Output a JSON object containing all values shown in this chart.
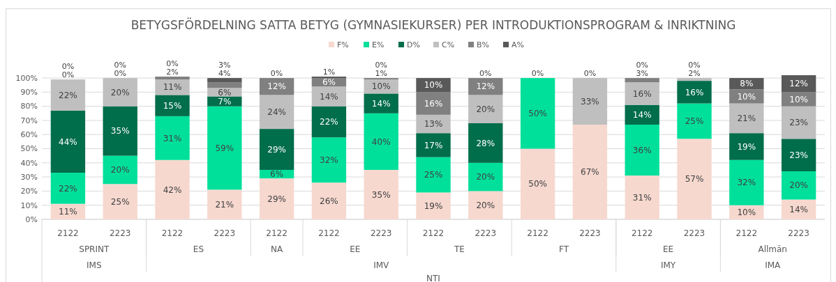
{
  "chart_data": {
    "type": "bar",
    "stacked": true,
    "title": "BETYGSFÖRDELNING SATTA BETYG (GYMNASIEKURSER) PER INTRODUKTIONSPROGRAM & INRIKTNING",
    "categories": [
      "2122",
      "2223",
      "2122",
      "2223",
      "2122",
      "2122",
      "2223",
      "2122",
      "2223",
      "2122",
      "2223",
      "2122",
      "2223",
      "2122",
      "2223"
    ],
    "annotations": [
      "SPRINT",
      "ES",
      "NA",
      "EE",
      "TE",
      "FT",
      "EE",
      "Allmän",
      "IMS",
      "IMV",
      "IMY",
      "IMA",
      "NTI"
    ],
    "series": [
      {
        "name": "F%",
        "color": "#f6d8cf",
        "values": [
          11,
          25,
          42,
          21,
          29,
          26,
          35,
          19,
          20,
          50,
          67,
          31,
          57,
          10,
          14
        ],
        "value_labels": [
          "11%",
          "25%",
          "42%",
          "21%",
          "29%",
          "26%",
          "35%",
          "19%",
          "20%",
          "50%",
          "67%",
          "31%",
          "57%",
          "10%",
          "14%"
        ]
      },
      {
        "name": "E%",
        "color": "#00e09b",
        "values": [
          22,
          20,
          31,
          59,
          6,
          32,
          40,
          25,
          20,
          50,
          0,
          36,
          25,
          32,
          20
        ],
        "value_labels": [
          "22%",
          "20%",
          "31%",
          "59%",
          "6%",
          "32%",
          "40%",
          "25%",
          "20%",
          "50%",
          null,
          "36%",
          "25%",
          "32%",
          "20%"
        ]
      },
      {
        "name": "D%",
        "color": "#006d4b",
        "values": [
          44,
          35,
          15,
          7,
          29,
          22,
          14,
          17,
          28,
          0,
          0,
          14,
          16,
          19,
          23
        ],
        "value_labels": [
          "44%",
          "35%",
          "15%",
          "7%",
          "29%",
          "22%",
          "14%",
          "17%",
          "28%",
          "0%",
          null,
          "14%",
          "16%",
          "19%",
          "23%"
        ]
      },
      {
        "name": "C%",
        "color": "#bfbfbf",
        "values": [
          22,
          20,
          11,
          6,
          24,
          14,
          10,
          13,
          20,
          0,
          33,
          16,
          2,
          21,
          23
        ],
        "value_labels": [
          "22%",
          "20%",
          "11%",
          "6%",
          "24%",
          "14%",
          "10%",
          "13%",
          "20%",
          null,
          "33%",
          "16%",
          "2%",
          "21%",
          "23%"
        ]
      },
      {
        "name": "B%",
        "color": "#808080",
        "values": [
          0,
          0,
          2,
          4,
          12,
          6,
          1,
          16,
          12,
          0,
          0,
          3,
          0,
          10,
          10
        ],
        "value_labels": [
          "0%",
          "0%",
          "2%",
          "4%",
          "12%",
          "6%",
          "1%",
          "16%",
          "12%",
          null,
          "0%",
          "3%",
          "0%",
          "10%",
          "10%"
        ]
      },
      {
        "name": "A%",
        "color": "#595959",
        "values": [
          0,
          0,
          0,
          3,
          0,
          1,
          0,
          10,
          0,
          0,
          0,
          0,
          0,
          8,
          12
        ],
        "value_labels": [
          "0%",
          "0%",
          "0%",
          "3%",
          "0%",
          "1%",
          "0%",
          "10%",
          "0%",
          null,
          null,
          "0%",
          null,
          "8%",
          "12%"
        ]
      }
    ],
    "ylim": [
      0,
      102
    ],
    "yticks": [
      {
        "value": 0,
        "label": "0%"
      },
      {
        "value": 10,
        "label": "10%"
      },
      {
        "value": 20,
        "label": "20%"
      },
      {
        "value": 30,
        "label": "30%"
      },
      {
        "value": 40,
        "label": "40%"
      },
      {
        "value": 50,
        "label": "50%"
      },
      {
        "value": 60,
        "label": "60%"
      },
      {
        "value": 70,
        "label": "70%"
      },
      {
        "value": 80,
        "label": "80%"
      },
      {
        "value": 90,
        "label": "90%"
      },
      {
        "value": 100,
        "label": "100%"
      }
    ],
    "grid": "y",
    "legend": "top"
  }
}
